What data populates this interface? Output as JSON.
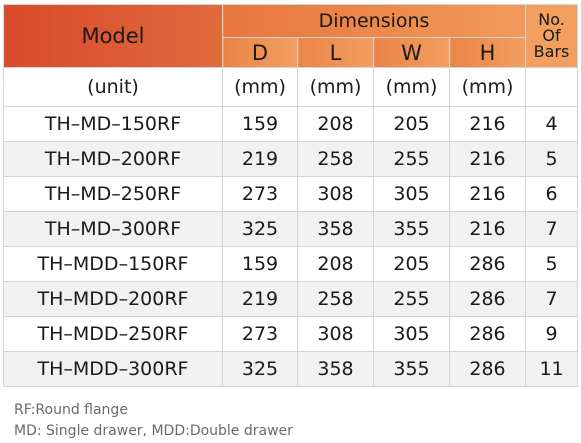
{
  "header": {
    "model": "Model",
    "dimensions": "Dimensions",
    "bars": [
      "No.",
      "Of",
      "Bars"
    ],
    "dims": [
      "D",
      "L",
      "W",
      "H"
    ]
  },
  "units": {
    "model": "(unit)",
    "dims": [
      "(mm)",
      "(mm)",
      "(mm)",
      "(mm)"
    ],
    "bars": ""
  },
  "rows": [
    {
      "model": "TH–MD–150RF",
      "d": "159",
      "l": "208",
      "w": "205",
      "h": "216",
      "bars": "4"
    },
    {
      "model": "TH–MD–200RF",
      "d": "219",
      "l": "258",
      "w": "255",
      "h": "216",
      "bars": "5"
    },
    {
      "model": "TH–MD–250RF",
      "d": "273",
      "l": "308",
      "w": "305",
      "h": "216",
      "bars": "6"
    },
    {
      "model": "TH–MD–300RF",
      "d": "325",
      "l": "358",
      "w": "355",
      "h": "216",
      "bars": "7"
    },
    {
      "model": "TH–MDD–150RF",
      "d": "159",
      "l": "208",
      "w": "205",
      "h": "286",
      "bars": "5"
    },
    {
      "model": "TH–MDD–200RF",
      "d": "219",
      "l": "258",
      "w": "255",
      "h": "286",
      "bars": "7"
    },
    {
      "model": "TH–MDD–250RF",
      "d": "273",
      "l": "308",
      "w": "305",
      "h": "286",
      "bars": "9"
    },
    {
      "model": "TH–MDD–300RF",
      "d": "325",
      "l": "358",
      "w": "355",
      "h": "286",
      "bars": "11"
    }
  ],
  "notes": [
    "RF:Round flange",
    "MD: Single drawer, MDD:Double drawer"
  ],
  "colors": {
    "header_dark": "#d94a2a",
    "header_light": "#f29f60",
    "row_alt": "#f1f1f1",
    "note_text": "#6a6a6a"
  }
}
